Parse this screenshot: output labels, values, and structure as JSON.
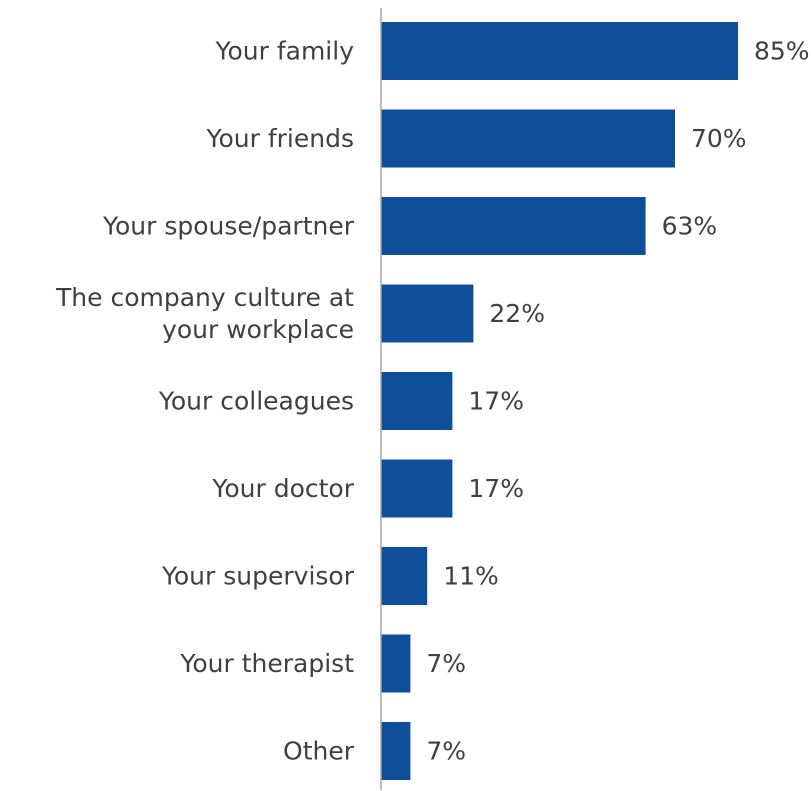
{
  "chart_data": {
    "type": "bar",
    "orientation": "horizontal",
    "categories": [
      [
        "Your family"
      ],
      [
        "Your friends"
      ],
      [
        "Your spouse/partner"
      ],
      [
        "The company culture at",
        "your workplace"
      ],
      [
        "Your colleagues"
      ],
      [
        "Your doctor"
      ],
      [
        "Your supervisor"
      ],
      [
        "Your therapist"
      ],
      [
        "Other"
      ]
    ],
    "values": [
      85,
      70,
      63,
      22,
      17,
      17,
      11,
      7,
      7
    ],
    "value_labels": [
      "85%",
      "70%",
      "63%",
      "22%",
      "17%",
      "17%",
      "11%",
      "7%",
      "7%"
    ],
    "value_unit": "%",
    "xlim": [
      0,
      100
    ],
    "title": "",
    "xlabel": "",
    "ylabel": "",
    "grid": false,
    "legend": "none",
    "colors": {
      "bar": "#0F4F99",
      "axis": "#a6a6a6",
      "text": "#404040"
    }
  }
}
